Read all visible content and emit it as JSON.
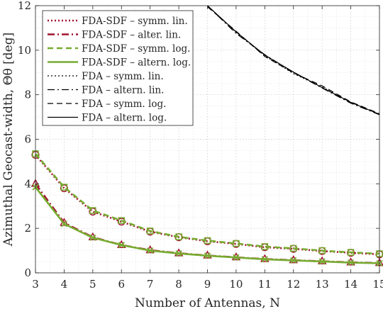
{
  "chart_data": {
    "type": "line",
    "title": "",
    "xlabel": "Number of Antennas, N",
    "ylabel": "Azimuthal Geocast-width, Θθ [deg]",
    "xlim": [
      3,
      15
    ],
    "ylim": [
      0,
      12
    ],
    "x_ticks": [
      "3",
      "4",
      "5",
      "6",
      "7",
      "8",
      "9",
      "10",
      "11",
      "12",
      "13",
      "14",
      "15"
    ],
    "y_ticks": [
      "0",
      "2",
      "4",
      "6",
      "8",
      "10",
      "12"
    ],
    "grid": "dotted major and minor",
    "legend_position": "top-left",
    "x": [
      3,
      4,
      5,
      6,
      7,
      8,
      9,
      10,
      11,
      12,
      13,
      14,
      15
    ],
    "series": [
      {
        "name": "FDA-SDF – symm. lin.",
        "color": "#a2142f",
        "style": "dotted",
        "width": 2.6,
        "marker": "circle",
        "values": [
          5.3,
          3.8,
          2.75,
          2.3,
          1.85,
          1.6,
          1.42,
          1.3,
          1.15,
          1.08,
          0.98,
          0.9,
          0.83
        ]
      },
      {
        "name": "FDA-SDF – alter. lin.",
        "color": "#a2142f",
        "style": "dashdot",
        "width": 2.6,
        "marker": "triangle",
        "values": [
          4.0,
          2.25,
          1.6,
          1.25,
          1.02,
          0.88,
          0.78,
          0.7,
          0.62,
          0.57,
          0.52,
          0.47,
          0.44
        ]
      },
      {
        "name": "FDA-SDF – symm. log.",
        "color": "#77ac30",
        "style": "dashed",
        "width": 2.6,
        "marker": "square",
        "values": [
          5.35,
          3.85,
          2.8,
          2.35,
          1.88,
          1.62,
          1.45,
          1.32,
          1.18,
          1.1,
          1.0,
          0.92,
          0.86
        ]
      },
      {
        "name": "FDA-SDF – altern. log.",
        "color": "#77ac30",
        "style": "solid",
        "width": 2.6,
        "marker": "cross",
        "values": [
          3.85,
          2.2,
          1.58,
          1.25,
          1.0,
          0.87,
          0.77,
          0.69,
          0.61,
          0.56,
          0.51,
          0.46,
          0.43
        ]
      },
      {
        "name": "FDA – symm. lin.",
        "color": "#000000",
        "style": "dotted",
        "width": 1.2,
        "marker": "none",
        "values": [
          null,
          null,
          null,
          null,
          null,
          null,
          12.0,
          10.8,
          9.75,
          8.95,
          8.35,
          7.65,
          7.12
        ]
      },
      {
        "name": "FDA – altern. lin.",
        "color": "#000000",
        "style": "dashdot",
        "width": 1.2,
        "marker": "none",
        "values": [
          null,
          null,
          null,
          null,
          null,
          null,
          12.0,
          10.75,
          9.8,
          9.0,
          8.3,
          7.62,
          7.1
        ]
      },
      {
        "name": "FDA – symm. log.",
        "color": "#000000",
        "style": "dashed",
        "width": 1.2,
        "marker": "none",
        "values": [
          null,
          null,
          null,
          null,
          null,
          null,
          11.95,
          10.85,
          9.72,
          8.98,
          8.4,
          7.68,
          7.15
        ]
      },
      {
        "name": "FDA – altern. log.",
        "color": "#000000",
        "style": "solid",
        "width": 1.2,
        "marker": "none",
        "values": [
          null,
          null,
          null,
          null,
          null,
          null,
          12.0,
          10.82,
          9.78,
          9.02,
          8.32,
          7.66,
          7.12
        ]
      }
    ]
  }
}
